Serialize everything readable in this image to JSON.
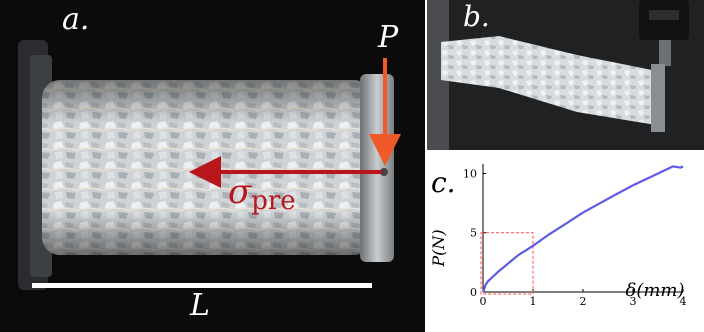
{
  "panel_a": {
    "label": "a.",
    "force_label": "P",
    "stress_symbol": "σ",
    "stress_subscript": "pre",
    "length_label": "L",
    "colors": {
      "arrow_orange": "#f05a28",
      "arrow_red": "#b8161c",
      "background": "#0b0b0b"
    }
  },
  "panel_b": {
    "label": "b."
  },
  "chart_data": {
    "type": "line",
    "panel_label": "c.",
    "xlabel": "δ(mm)",
    "ylabel": "P(N)",
    "xlim": [
      0,
      4
    ],
    "ylim": [
      0,
      10.8
    ],
    "xticks": [
      0,
      1,
      2,
      3,
      4
    ],
    "yticks": [
      0,
      5,
      10
    ],
    "grid": false,
    "line_color": "#5c5ce6",
    "highlight_box": {
      "x": [
        0,
        1
      ],
      "y": [
        0,
        5
      ],
      "color": "#ff4c4c",
      "style": "dashed"
    },
    "series": [
      {
        "x": [
          0,
          0.02,
          0.05,
          0.1,
          0.2,
          0.3,
          0.5,
          0.7,
          1.0,
          1.3,
          1.6,
          2.0,
          2.3,
          2.6,
          3.0,
          3.3,
          3.6,
          3.8,
          3.95,
          4.0
        ],
        "values": [
          0,
          0.2,
          0.6,
          0.9,
          1.3,
          1.7,
          2.4,
          3.1,
          3.9,
          4.8,
          5.6,
          6.7,
          7.4,
          8.1,
          9.0,
          9.6,
          10.2,
          10.6,
          10.5,
          10.6
        ]
      }
    ]
  }
}
